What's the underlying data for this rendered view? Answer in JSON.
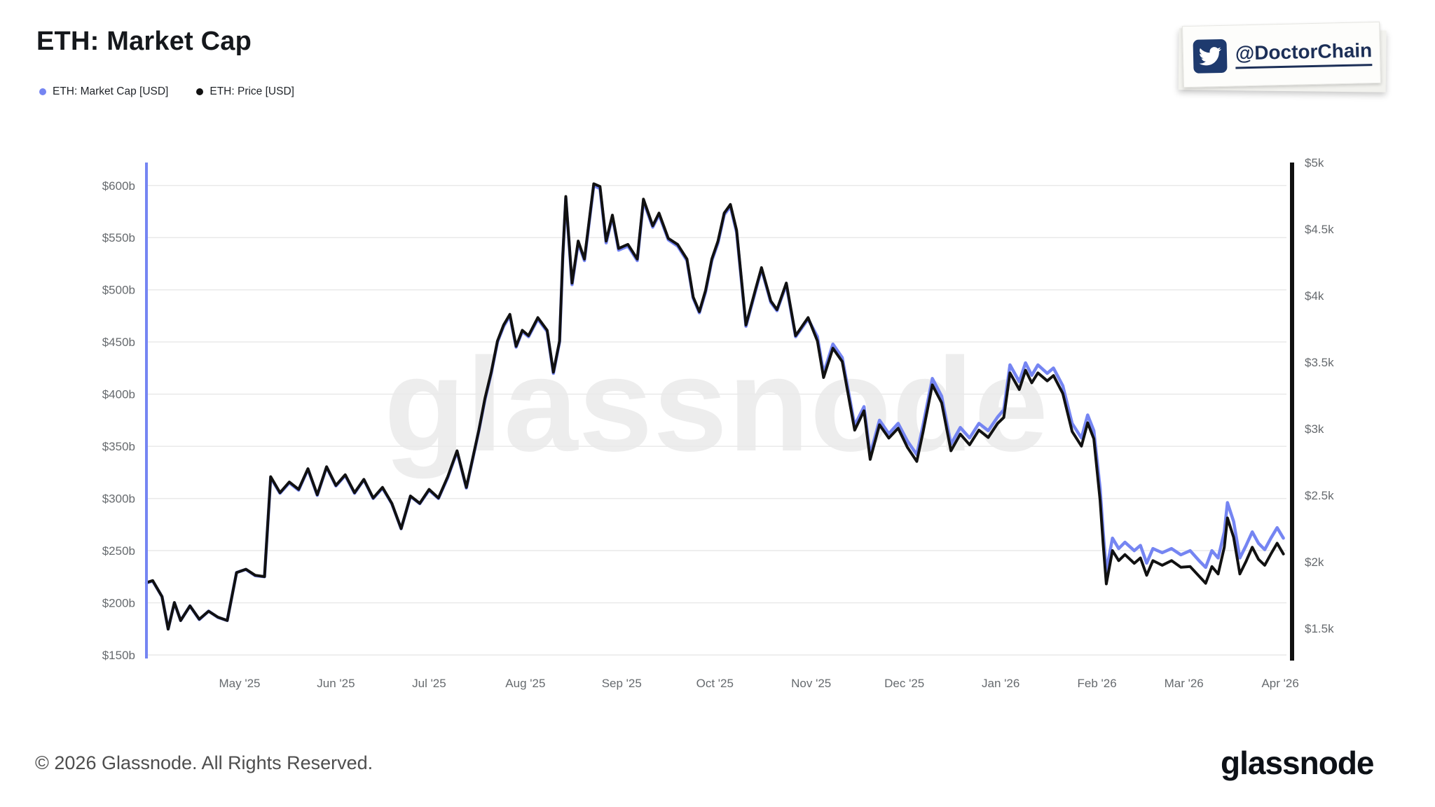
{
  "header": {
    "title": "ETH: Market Cap"
  },
  "legend": {
    "items": [
      {
        "label": "ETH: Market Cap [USD]",
        "color": "#7585f2"
      },
      {
        "label": "ETH: Price [USD]",
        "color": "#111111"
      }
    ]
  },
  "badge": {
    "handle": "@DoctorChain",
    "icon": "twitter-bird",
    "icon_color": "#1e3a6e"
  },
  "chart": {
    "watermark": "glassnode"
  },
  "footer": {
    "copyright": "© 2026 Glassnode. All Rights Reserved.",
    "logo_text": "glassnode"
  },
  "chart_data": {
    "type": "line",
    "title": "ETH: Market Cap",
    "grid": "horizontal",
    "legend_position": "top-left",
    "watermark": "glassnode",
    "x_axis": {
      "min": "2025-04-01",
      "max": "2026-04-03",
      "ticks": [
        {
          "date": "2025-05-01",
          "label": "May '25"
        },
        {
          "date": "2025-06-01",
          "label": "Jun '25"
        },
        {
          "date": "2025-07-01",
          "label": "Jul '25"
        },
        {
          "date": "2025-08-01",
          "label": "Aug '25"
        },
        {
          "date": "2025-09-01",
          "label": "Sep '25"
        },
        {
          "date": "2025-10-01",
          "label": "Oct '25"
        },
        {
          "date": "2025-11-01",
          "label": "Nov '25"
        },
        {
          "date": "2025-12-01",
          "label": "Dec '25"
        },
        {
          "date": "2026-01-01",
          "label": "Jan '26"
        },
        {
          "date": "2026-02-01",
          "label": "Feb '26"
        },
        {
          "date": "2026-03-01",
          "label": "Mar '26"
        },
        {
          "date": "2026-04-01",
          "label": "Apr '26"
        }
      ]
    },
    "left_axis": {
      "unit": "USD billions",
      "min": 150,
      "max": 622,
      "ticks": [
        {
          "value": 600,
          "label": "$600b"
        },
        {
          "value": 550,
          "label": "$550b"
        },
        {
          "value": 500,
          "label": "$500b"
        },
        {
          "value": 450,
          "label": "$450b"
        },
        {
          "value": 400,
          "label": "$400b"
        },
        {
          "value": 350,
          "label": "$350b"
        },
        {
          "value": 300,
          "label": "$300b"
        },
        {
          "value": 250,
          "label": "$250b"
        },
        {
          "value": 200,
          "label": "$200b"
        },
        {
          "value": 150,
          "label": "$150b"
        }
      ]
    },
    "right_axis": {
      "unit": "USD",
      "min": 1301,
      "max": 5000,
      "ticks": [
        {
          "value": 5000,
          "label": "$5k"
        },
        {
          "value": 4500,
          "label": "$4.5k"
        },
        {
          "value": 4000,
          "label": "$4k"
        },
        {
          "value": 3500,
          "label": "$3.5k"
        },
        {
          "value": 3000,
          "label": "$3k"
        },
        {
          "value": 2500,
          "label": "$2.5k"
        },
        {
          "value": 2000,
          "label": "$2k"
        },
        {
          "value": 1500,
          "label": "$1.5k"
        }
      ]
    },
    "x": [
      "2025-04-01",
      "2025-04-03",
      "2025-04-06",
      "2025-04-08",
      "2025-04-10",
      "2025-04-12",
      "2025-04-15",
      "2025-04-18",
      "2025-04-21",
      "2025-04-24",
      "2025-04-27",
      "2025-04-30",
      "2025-05-03",
      "2025-05-06",
      "2025-05-09",
      "2025-05-11",
      "2025-05-14",
      "2025-05-17",
      "2025-05-20",
      "2025-05-23",
      "2025-05-26",
      "2025-05-29",
      "2025-06-01",
      "2025-06-04",
      "2025-06-07",
      "2025-06-10",
      "2025-06-13",
      "2025-06-16",
      "2025-06-19",
      "2025-06-22",
      "2025-06-25",
      "2025-06-28",
      "2025-07-01",
      "2025-07-04",
      "2025-07-07",
      "2025-07-10",
      "2025-07-13",
      "2025-07-17",
      "2025-07-19",
      "2025-07-21",
      "2025-07-23",
      "2025-07-25",
      "2025-07-27",
      "2025-07-29",
      "2025-07-31",
      "2025-08-02",
      "2025-08-05",
      "2025-08-08",
      "2025-08-10",
      "2025-08-12",
      "2025-08-13",
      "2025-08-14",
      "2025-08-16",
      "2025-08-18",
      "2025-08-20",
      "2025-08-23",
      "2025-08-25",
      "2025-08-27",
      "2025-08-29",
      "2025-08-31",
      "2025-09-03",
      "2025-09-06",
      "2025-09-08",
      "2025-09-11",
      "2025-09-13",
      "2025-09-16",
      "2025-09-19",
      "2025-09-22",
      "2025-09-24",
      "2025-09-26",
      "2025-09-28",
      "2025-09-30",
      "2025-10-02",
      "2025-10-04",
      "2025-10-06",
      "2025-10-08",
      "2025-10-11",
      "2025-10-14",
      "2025-10-16",
      "2025-10-19",
      "2025-10-21",
      "2025-10-24",
      "2025-10-27",
      "2025-10-31",
      "2025-11-03",
      "2025-11-05",
      "2025-11-08",
      "2025-11-11",
      "2025-11-15",
      "2025-11-18",
      "2025-11-20",
      "2025-11-23",
      "2025-11-26",
      "2025-11-29",
      "2025-12-02",
      "2025-12-05",
      "2025-12-07",
      "2025-12-10",
      "2025-12-13",
      "2025-12-16",
      "2025-12-19",
      "2025-12-22",
      "2025-12-25",
      "2025-12-28",
      "2025-12-31",
      "2026-01-02",
      "2026-01-04",
      "2026-01-07",
      "2026-01-09",
      "2026-01-11",
      "2026-01-13",
      "2026-01-16",
      "2026-01-18",
      "2026-01-21",
      "2026-01-24",
      "2026-01-27",
      "2026-01-29",
      "2026-01-31",
      "2026-02-02",
      "2026-02-03",
      "2026-02-04",
      "2026-02-06",
      "2026-02-08",
      "2026-02-10",
      "2026-02-13",
      "2026-02-15",
      "2026-02-17",
      "2026-02-19",
      "2026-02-22",
      "2026-02-25",
      "2026-02-28",
      "2026-03-03",
      "2026-03-06",
      "2026-03-08",
      "2026-03-10",
      "2026-03-12",
      "2026-03-14",
      "2026-03-15",
      "2026-03-17",
      "2026-03-19",
      "2026-03-21",
      "2026-03-23",
      "2026-03-25",
      "2026-03-27",
      "2026-03-29",
      "2026-03-31",
      "2026-04-02"
    ],
    "series": [
      {
        "name": "ETH: Market Cap [USD]",
        "axis": "left",
        "color": "#7585f2",
        "unit": "USD billions",
        "values": [
          219,
          221,
          206,
          175,
          200,
          183,
          197,
          184,
          192,
          186,
          183,
          229,
          232,
          226,
          225,
          320,
          305,
          315,
          308,
          328,
          303,
          330,
          312,
          322,
          305,
          318,
          300,
          310,
          295,
          271,
          302,
          295,
          308,
          300,
          320,
          345,
          310,
          365,
          395,
          420,
          450,
          465,
          475,
          445,
          460,
          455,
          472,
          460,
          420,
          450,
          530,
          588,
          505,
          545,
          528,
          600,
          597,
          545,
          570,
          538,
          542,
          528,
          585,
          560,
          572,
          548,
          542,
          528,
          492,
          478,
          498,
          528,
          545,
          572,
          580,
          555,
          465,
          498,
          520,
          488,
          480,
          505,
          455,
          472,
          455,
          420,
          448,
          435,
          370,
          388,
          342,
          375,
          362,
          372,
          355,
          342,
          370,
          415,
          398,
          352,
          368,
          358,
          372,
          365,
          378,
          385,
          428,
          412,
          430,
          418,
          428,
          420,
          425,
          408,
          372,
          358,
          380,
          365,
          310,
          268,
          230,
          262,
          252,
          258,
          250,
          255,
          238,
          252,
          248,
          252,
          246,
          250,
          240,
          234,
          250,
          243,
          268,
          296,
          278,
          243,
          255,
          268,
          257,
          251,
          262,
          272,
          262
        ]
      },
      {
        "name": "ETH: Price [USD]",
        "axis": "right",
        "color": "#111111",
        "unit": "USD",
        "values": [
          1845,
          1860,
          1740,
          1495,
          1695,
          1560,
          1670,
          1570,
          1630,
          1585,
          1560,
          1920,
          1945,
          1900,
          1890,
          2640,
          2520,
          2600,
          2545,
          2700,
          2505,
          2715,
          2575,
          2655,
          2520,
          2620,
          2480,
          2560,
          2440,
          2250,
          2495,
          2440,
          2545,
          2480,
          2640,
          2835,
          2560,
          2990,
          3230,
          3425,
          3660,
          3780,
          3860,
          3620,
          3740,
          3700,
          3835,
          3740,
          3425,
          3660,
          4290,
          4745,
          4095,
          4410,
          4275,
          4840,
          4820,
          4410,
          4605,
          4355,
          4385,
          4275,
          4725,
          4525,
          4620,
          4430,
          4385,
          4275,
          3990,
          3880,
          4040,
          4275,
          4410,
          4620,
          4685,
          4490,
          3780,
          4040,
          4210,
          3960,
          3895,
          4095,
          3700,
          3835,
          3660,
          3385,
          3605,
          3505,
          2990,
          3135,
          2770,
          3030,
          2930,
          3005,
          2860,
          2755,
          2975,
          3330,
          3195,
          2835,
          2960,
          2880,
          2990,
          2935,
          3040,
          3085,
          3420,
          3295,
          3440,
          3345,
          3420,
          3360,
          3400,
          3265,
          2980,
          2870,
          3045,
          2925,
          2465,
          2135,
          1835,
          2085,
          2010,
          2055,
          1990,
          2030,
          1900,
          2010,
          1975,
          2010,
          1960,
          1965,
          1890,
          1840,
          1965,
          1910,
          2110,
          2330,
          2185,
          1910,
          2005,
          2110,
          2020,
          1975,
          2060,
          2140,
          2060
        ]
      }
    ]
  }
}
